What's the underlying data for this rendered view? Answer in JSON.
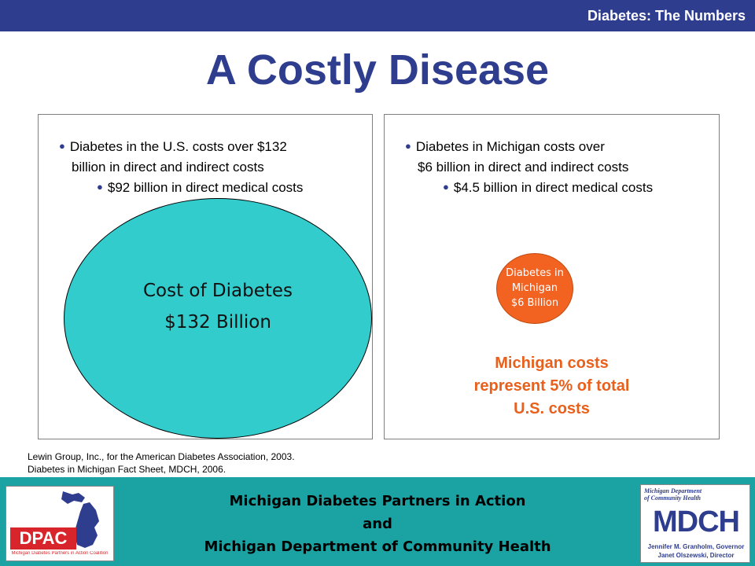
{
  "header": {
    "section_title": "Diabetes: The Numbers",
    "slide_title": "A Costly Disease"
  },
  "left_panel": {
    "bullet_main_line1": "Diabetes in the U.S. costs over $132",
    "bullet_main_line2": "billion in direct and indirect costs",
    "bullet_sub": "$92 billion in direct medical costs",
    "ellipse_line1": "Cost of Diabetes",
    "ellipse_line2": "$132 Billion"
  },
  "right_panel": {
    "bullet_main_line1": "Diabetes in Michigan costs over",
    "bullet_main_line2": "$6 billion in direct and indirect costs",
    "bullet_sub": "$4.5 billion in direct medical costs",
    "circle_line1": "Diabetes in",
    "circle_line2": "Michigan",
    "circle_line3": "$6 Billion",
    "note_line1": "Michigan costs",
    "note_line2": "represent 5% of total",
    "note_line3": "U.S. costs"
  },
  "sources": {
    "line1": "Lewin Group, Inc., for the American Diabetes Association, 2003.",
    "line2": "Diabetes in Michigan Fact Sheet, MDCH, 2006."
  },
  "footer": {
    "line1": "Michigan Diabetes Partners in Action",
    "line2": "and",
    "line3": "Michigan Department of Community Health",
    "dpac_logo_text": "DPAC",
    "dpac_logo_caption": "Michigan Diabetes Partners in Action Coalition",
    "mdch_logo_header_line1": "Michigan Department",
    "mdch_logo_header_line2": "of Community Health",
    "mdch_logo_text": "MDCH",
    "mdch_logo_line1": "Jennifer M. Granholm, Governor",
    "mdch_logo_line2": "Janet Olszewski, Director"
  },
  "colors": {
    "brand_blue": "#2f3d8f",
    "teal": "#33cccc",
    "footer_teal": "#1ba3a3",
    "orange": "#f26322",
    "dpac_red": "#d8252b"
  },
  "icons": [
    "bullet-icon",
    "michigan-map-icon"
  ]
}
